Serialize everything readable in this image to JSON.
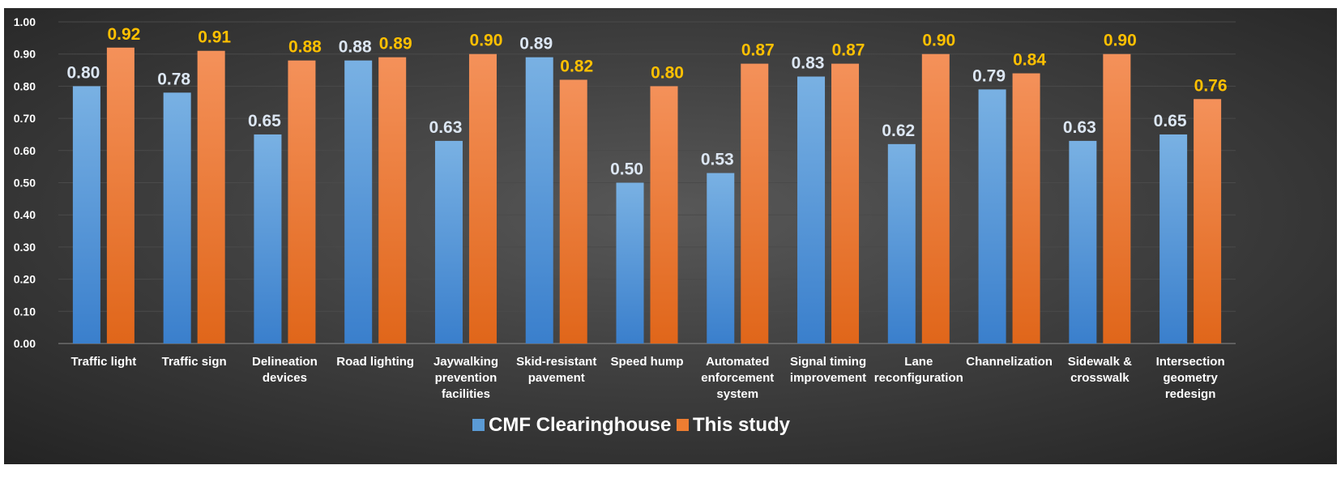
{
  "chart_data": {
    "type": "bar",
    "categories": [
      [
        "Traffic light"
      ],
      [
        "Traffic sign"
      ],
      [
        "Delineation",
        "devices"
      ],
      [
        "Road lighting"
      ],
      [
        "Jaywalking",
        "prevention",
        "facilities"
      ],
      [
        "Skid-resistant",
        "pavement"
      ],
      [
        "Speed hump"
      ],
      [
        "Automated",
        "enforcement",
        "system"
      ],
      [
        "Signal timing",
        "improvement"
      ],
      [
        "Lane",
        "reconfiguration"
      ],
      [
        "Channelization"
      ],
      [
        "Sidewalk &",
        "crosswalk"
      ],
      [
        "Intersection",
        "geometry",
        "redesign"
      ]
    ],
    "series": [
      {
        "name": "CMF Clearinghouse",
        "values": [
          0.8,
          0.78,
          0.65,
          0.88,
          0.63,
          0.89,
          0.5,
          0.53,
          0.83,
          0.62,
          0.79,
          0.63,
          0.65
        ],
        "labels": [
          "0.80",
          "0.78",
          "0.65",
          "0.88",
          "0.63",
          "0.89",
          "0.50",
          "0.53",
          "0.83",
          "0.62",
          "0.79",
          "0.63",
          "0.65"
        ],
        "color": "#5b9bd5",
        "label_color": "#dce6f2"
      },
      {
        "name": "This study",
        "values": [
          0.92,
          0.91,
          0.88,
          0.89,
          0.9,
          0.82,
          0.8,
          0.87,
          0.87,
          0.9,
          0.84,
          0.9,
          0.76
        ],
        "labels": [
          "0.92",
          "0.91",
          "0.88",
          "0.89",
          "0.90",
          "0.82",
          "0.80",
          "0.87",
          "0.87",
          "0.90",
          "0.84",
          "0.90",
          "0.76"
        ],
        "color": "#ed7d31",
        "label_color": "#ffc000"
      }
    ],
    "y_ticks": [
      "0.00",
      "0.10",
      "0.20",
      "0.30",
      "0.40",
      "0.50",
      "0.60",
      "0.70",
      "0.80",
      "0.90",
      "1.00"
    ],
    "ylim": [
      0,
      1.0
    ],
    "grid": true,
    "legend_position": "bottom",
    "title": "",
    "xlabel": "",
    "ylabel": ""
  }
}
